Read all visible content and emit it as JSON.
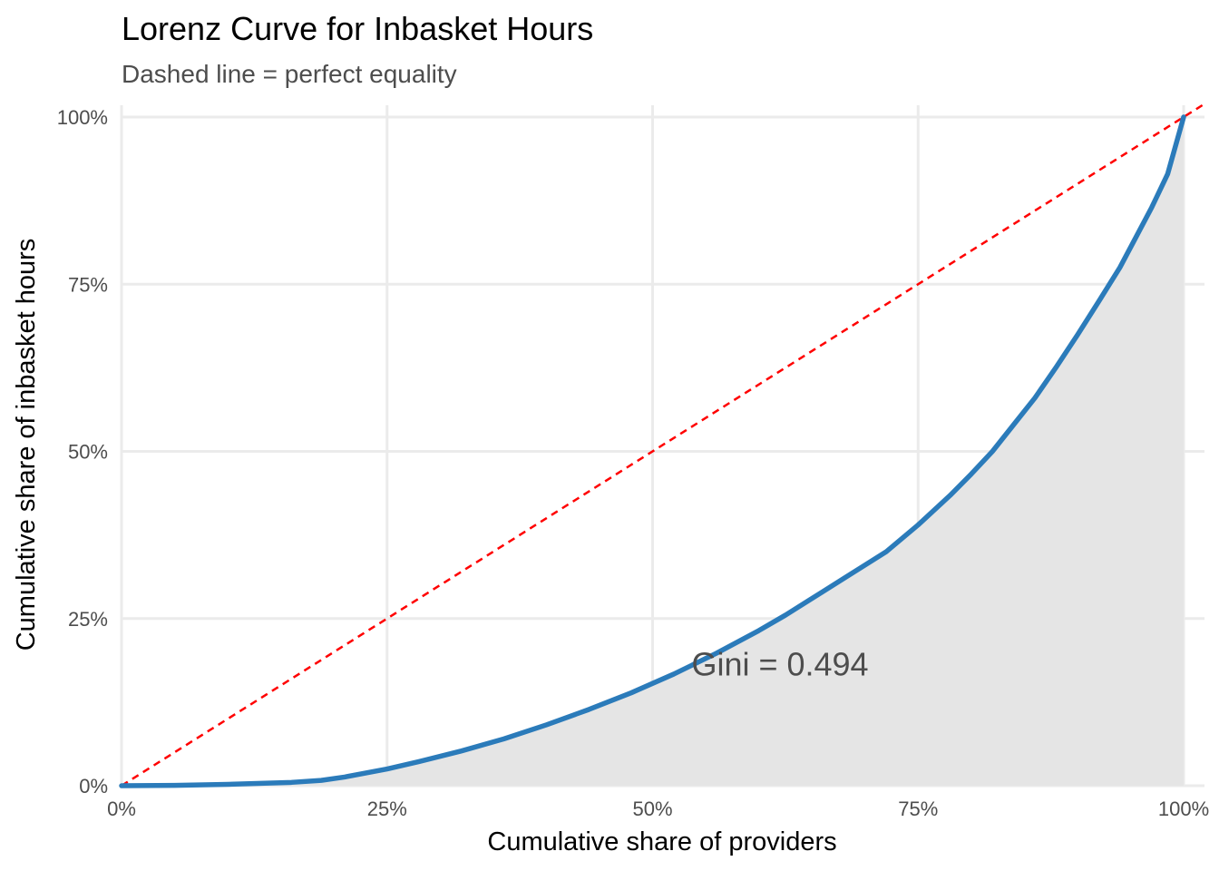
{
  "chart_data": {
    "type": "line",
    "title": "Lorenz Curve for Inbasket Hours",
    "subtitle": "Dashed line = perfect equality",
    "xlabel": "Cumulative share of providers",
    "ylabel": "Cumulative share of inbasket hours",
    "xlim": [
      0,
      1
    ],
    "ylim": [
      0,
      1
    ],
    "x_ticks": [
      0,
      0.25,
      0.5,
      0.75,
      1
    ],
    "x_tick_labels": [
      "0%",
      "25%",
      "50%",
      "75%",
      "100%"
    ],
    "y_ticks": [
      0,
      0.25,
      0.5,
      0.75,
      1
    ],
    "y_tick_labels": [
      "0%",
      "25%",
      "50%",
      "75%",
      "100%"
    ],
    "grid": true,
    "series": [
      {
        "name": "Lorenz curve",
        "color": "#2b7bba",
        "x": [
          0,
          0.05,
          0.1,
          0.16,
          0.188,
          0.21,
          0.25,
          0.28,
          0.32,
          0.36,
          0.4,
          0.44,
          0.48,
          0.52,
          0.56,
          0.6,
          0.625,
          0.66,
          0.7,
          0.72,
          0.75,
          0.78,
          0.8,
          0.82,
          0.84,
          0.86,
          0.88,
          0.9,
          0.92,
          0.94,
          0.955,
          0.97,
          0.985,
          1.0
        ],
        "y": [
          0,
          0.0005,
          0.002,
          0.005,
          0.008,
          0.013,
          0.025,
          0.036,
          0.052,
          0.07,
          0.091,
          0.114,
          0.139,
          0.167,
          0.198,
          0.232,
          0.255,
          0.29,
          0.33,
          0.35,
          0.39,
          0.434,
          0.466,
          0.5,
          0.54,
          0.58,
          0.626,
          0.674,
          0.724,
          0.775,
          0.82,
          0.865,
          0.915,
          1.0
        ]
      },
      {
        "name": "Perfect equality",
        "color": "#ff0000",
        "dashed": true,
        "x": [
          0,
          1
        ],
        "y": [
          0,
          1
        ]
      }
    ],
    "fill_color": "#e5e5e5",
    "annotations": [
      {
        "text": "Gini = 0.494",
        "x": 0.62,
        "y": 0.178
      }
    ]
  }
}
